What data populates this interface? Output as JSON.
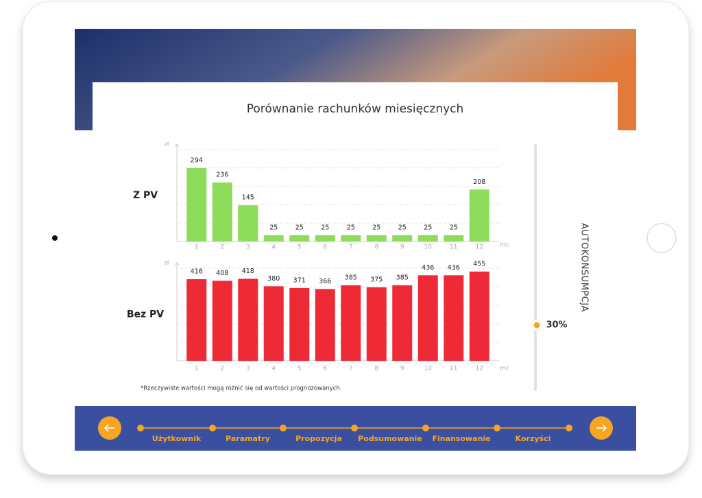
{
  "title": "Porównanie rachunków miesięcznych",
  "chart_data": [
    {
      "type": "bar",
      "label": "Z PV",
      "y_label": "zł",
      "x_label": "mc",
      "categories": [
        "1",
        "2",
        "3",
        "4",
        "5",
        "6",
        "7",
        "8",
        "9",
        "10",
        "11",
        "12"
      ],
      "values": [
        294,
        236,
        145,
        25,
        25,
        25,
        25,
        25,
        25,
        25,
        25,
        208
      ],
      "color": "#8ddc5a",
      "ylim": [
        0,
        390
      ]
    },
    {
      "type": "bar",
      "label": "Bez PV",
      "y_label": "zł",
      "x_label": "mc",
      "categories": [
        "1",
        "2",
        "3",
        "4",
        "5",
        "6",
        "7",
        "8",
        "9",
        "10",
        "11",
        "12"
      ],
      "values": [
        416,
        408,
        418,
        380,
        371,
        366,
        385,
        375,
        385,
        436,
        436,
        455
      ],
      "color": "#ee2a36",
      "ylim": [
        0,
        500
      ]
    }
  ],
  "footnote": "*Rzeczywiste wartości mogą różnić się od wartości prognozowanych.",
  "slider": {
    "label": "AUTOKONSUMPCJA",
    "value": "30%"
  },
  "steps": [
    "Użytkownik",
    "Paramatry",
    "Propozycja",
    "Podsumowanie",
    "Finansowanie",
    "Korzyści"
  ]
}
